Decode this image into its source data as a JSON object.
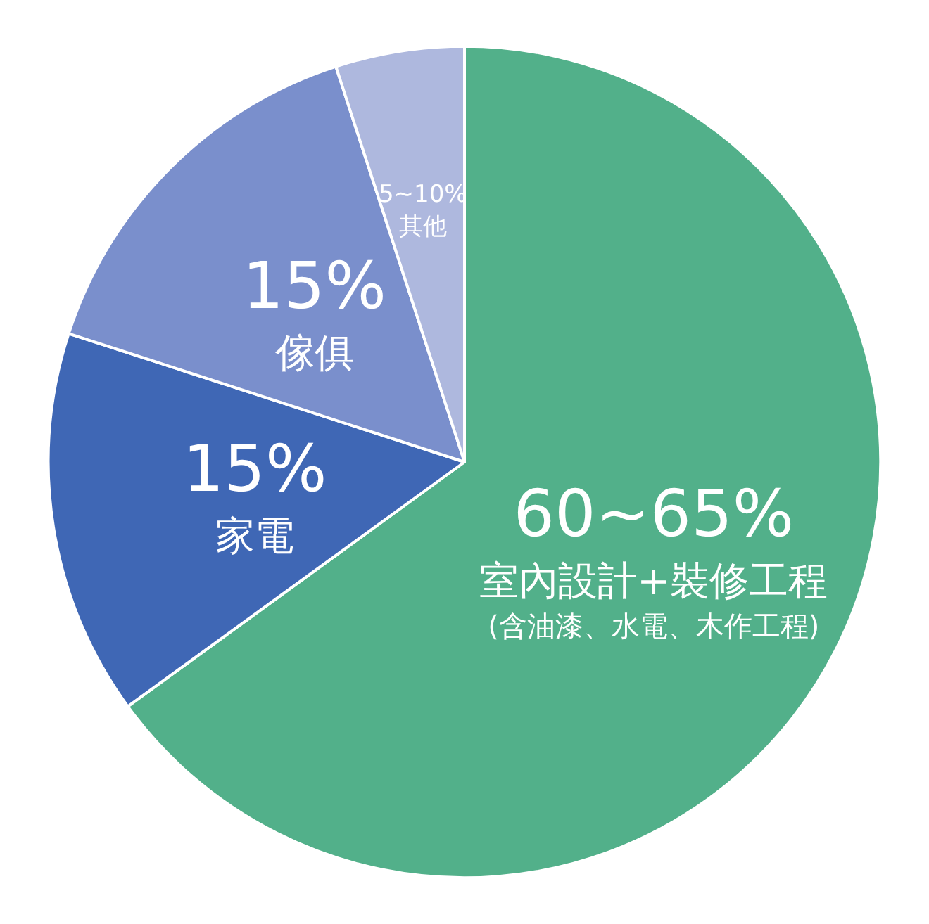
{
  "chart_data": {
    "type": "pie",
    "categories": [
      "室內設計+裝修工程\n(含油漆、水電、木作工程)",
      "家電",
      "傢俱",
      "其他"
    ],
    "values": [
      65,
      15,
      15,
      5
    ],
    "value_labels": [
      "60~65%",
      "15%",
      "15%",
      "5~10%"
    ],
    "colors": [
      "#52b08a",
      "#3f67b5",
      "#7a8fcc",
      "#aeb8de"
    ]
  }
}
